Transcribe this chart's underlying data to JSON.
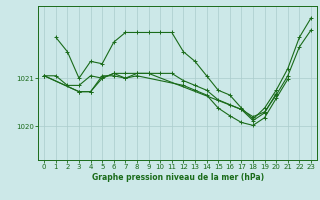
{
  "background_color": "#cce8e8",
  "plot_bg_color": "#cce8e8",
  "grid_color": "#aacccc",
  "line_color": "#1a6b1a",
  "xlabel": "Graphe pression niveau de la mer (hPa)",
  "xlim": [
    -0.5,
    23.5
  ],
  "ylim": [
    1019.3,
    1022.5
  ],
  "yticks": [
    1020,
    1021
  ],
  "xticks": [
    0,
    1,
    2,
    3,
    4,
    5,
    6,
    7,
    8,
    9,
    10,
    11,
    12,
    13,
    14,
    15,
    16,
    17,
    18,
    19,
    20,
    21,
    22,
    23
  ],
  "series": [
    [
      [
        1,
        1021.85
      ],
      [
        2,
        1021.55
      ],
      [
        3,
        1021.0
      ],
      [
        4,
        1021.35
      ],
      [
        5,
        1021.3
      ],
      [
        6,
        1021.75
      ],
      [
        7,
        1021.95
      ],
      [
        8,
        1021.95
      ],
      [
        9,
        1021.95
      ],
      [
        10,
        1021.95
      ],
      [
        11,
        1021.95
      ],
      [
        12,
        1021.55
      ],
      [
        13,
        1021.35
      ],
      [
        14,
        1021.05
      ],
      [
        15,
        1020.75
      ],
      [
        16,
        1020.65
      ],
      [
        17,
        1020.38
      ],
      [
        18,
        1020.15
      ],
      [
        19,
        1020.38
      ],
      [
        20,
        1020.75
      ],
      [
        21,
        1021.2
      ],
      [
        22,
        1021.85
      ],
      [
        23,
        1022.25
      ]
    ],
    [
      [
        0,
        1021.05
      ],
      [
        1,
        1021.05
      ],
      [
        2,
        1020.85
      ],
      [
        3,
        1020.85
      ],
      [
        4,
        1021.05
      ],
      [
        5,
        1021.0
      ],
      [
        6,
        1021.1
      ],
      [
        7,
        1021.1
      ],
      [
        8,
        1021.1
      ],
      [
        9,
        1021.1
      ],
      [
        10,
        1021.1
      ],
      [
        11,
        1021.1
      ],
      [
        12,
        1020.95
      ],
      [
        13,
        1020.85
      ],
      [
        14,
        1020.75
      ],
      [
        15,
        1020.55
      ],
      [
        16,
        1020.45
      ],
      [
        17,
        1020.35
      ],
      [
        18,
        1020.2
      ],
      [
        19,
        1020.3
      ],
      [
        20,
        1020.65
      ],
      [
        21,
        1021.05
      ],
      [
        22,
        1021.65
      ],
      [
        23,
        1022.0
      ]
    ],
    [
      [
        0,
        1021.05
      ],
      [
        3,
        1020.72
      ],
      [
        4,
        1020.72
      ],
      [
        5,
        1021.05
      ],
      [
        6,
        1021.05
      ],
      [
        7,
        1021.0
      ],
      [
        8,
        1021.05
      ],
      [
        12,
        1020.85
      ],
      [
        13,
        1020.75
      ],
      [
        14,
        1020.65
      ],
      [
        15,
        1020.38
      ],
      [
        16,
        1020.22
      ],
      [
        17,
        1020.08
      ],
      [
        18,
        1020.02
      ],
      [
        19,
        1020.18
      ],
      [
        20,
        1020.58
      ],
      [
        21,
        1020.98
      ]
    ],
    [
      [
        0,
        1021.05
      ],
      [
        3,
        1020.72
      ],
      [
        4,
        1020.72
      ],
      [
        5,
        1021.0
      ],
      [
        6,
        1021.1
      ],
      [
        7,
        1021.0
      ],
      [
        8,
        1021.1
      ],
      [
        9,
        1021.1
      ],
      [
        17,
        1020.35
      ],
      [
        18,
        1020.12
      ],
      [
        19,
        1020.28
      ],
      [
        20,
        1020.68
      ]
    ]
  ]
}
